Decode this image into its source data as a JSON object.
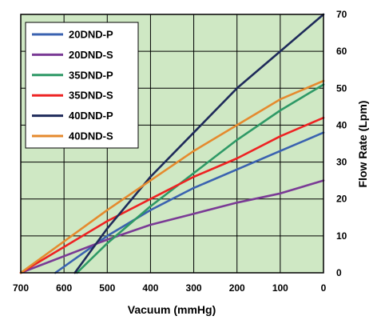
{
  "chart_data": {
    "type": "line",
    "title": "",
    "xlabel": "Vacuum (mmHg)",
    "ylabel": "Flow Rate (Lpm)",
    "xlim": [
      700,
      0
    ],
    "ylim": [
      0,
      70
    ],
    "x_ticks": [
      700,
      600,
      500,
      400,
      300,
      200,
      100,
      0
    ],
    "y_ticks": [
      0,
      10,
      20,
      30,
      40,
      50,
      60,
      70
    ],
    "grid": true,
    "legend_position": "top-left",
    "plot_background": "#cfe8c4",
    "series": [
      {
        "name": "20DND-P",
        "color": "#3a62b0",
        "x": [
          620,
          500,
          400,
          300,
          200,
          100,
          0
        ],
        "y": [
          0,
          10,
          17,
          23,
          28,
          33,
          38
        ]
      },
      {
        "name": "20DND-S",
        "color": "#7a3a95",
        "x": [
          700,
          500,
          400,
          300,
          200,
          100,
          0
        ],
        "y": [
          0,
          9,
          13,
          16,
          19,
          21.5,
          25
        ]
      },
      {
        "name": "35DND-P",
        "color": "#2e9966",
        "x": [
          570,
          500,
          400,
          300,
          200,
          100,
          0
        ],
        "y": [
          0,
          8,
          18,
          27,
          36,
          44,
          51
        ]
      },
      {
        "name": "35DND-S",
        "color": "#ee2222",
        "x": [
          700,
          500,
          400,
          300,
          200,
          100,
          0
        ],
        "y": [
          0,
          14,
          20,
          26,
          31,
          37,
          42
        ]
      },
      {
        "name": "40DND-P",
        "color": "#1e2a5a",
        "x": [
          575,
          500,
          400,
          300,
          200,
          100,
          0
        ],
        "y": [
          0,
          12,
          26,
          38,
          50,
          60,
          70
        ]
      },
      {
        "name": "40DND-S",
        "color": "#e58a2e",
        "x": [
          700,
          500,
          400,
          300,
          200,
          100,
          0
        ],
        "y": [
          0,
          17,
          25,
          33,
          40,
          47,
          52
        ]
      }
    ]
  }
}
